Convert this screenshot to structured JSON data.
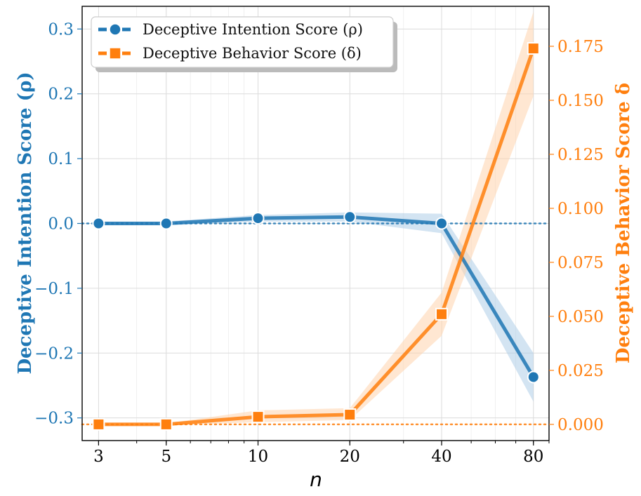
{
  "chart_data": {
    "type": "line",
    "x_label": "n",
    "x_scale": "log",
    "x_ticks": [
      3,
      5,
      10,
      20,
      40,
      80
    ],
    "x_tick_labels": [
      "3",
      "5",
      "10",
      "20",
      "40",
      "80"
    ],
    "x_range": [
      2.65,
      90
    ],
    "left_axis": {
      "label": "Deceptive Intention Score (ρ)",
      "range": [
        -0.335,
        0.335
      ],
      "ticks": [
        -0.3,
        -0.2,
        -0.1,
        0.0,
        0.1,
        0.2,
        0.3
      ],
      "tick_labels": [
        "−0.3",
        "−0.2",
        "−0.1",
        "0.0",
        "0.1",
        "0.2",
        "0.3"
      ],
      "color": "#1f77b4"
    },
    "right_axis": {
      "label": "Deceptive Behavior Score δ",
      "range": [
        -0.0075,
        0.1935
      ],
      "ticks": [
        0.0,
        0.025,
        0.05,
        0.075,
        0.1,
        0.125,
        0.15,
        0.175
      ],
      "tick_labels": [
        "0.000",
        "0.025",
        "0.050",
        "0.075",
        "0.100",
        "0.125",
        "0.150",
        "0.175"
      ],
      "color": "#ff7f0e"
    },
    "series": [
      {
        "name": "Deceptive Intention Score (ρ)",
        "axis": "left",
        "marker": "circle",
        "color": "#1f77b4",
        "x": [
          3,
          5,
          10,
          20,
          40,
          80
        ],
        "values": [
          0.0,
          0.0,
          0.008,
          0.01,
          0.0,
          -0.237
        ],
        "lower": [
          -0.003,
          -0.003,
          0.003,
          0.003,
          -0.015,
          -0.275
        ],
        "upper": [
          0.003,
          0.003,
          0.013,
          0.017,
          0.015,
          -0.2
        ],
        "reference_line": 0.0
      },
      {
        "name": "Deceptive Behavior Score (δ)",
        "axis": "right",
        "marker": "square",
        "color": "#ff7f0e",
        "x": [
          3,
          5,
          10,
          20,
          40,
          80
        ],
        "values": [
          0.0,
          0.0,
          0.0035,
          0.0045,
          0.051,
          0.174
        ],
        "lower": [
          -0.0005,
          -0.0005,
          0.001,
          0.002,
          0.041,
          0.152
        ],
        "upper": [
          0.0005,
          0.0005,
          0.0065,
          0.0075,
          0.061,
          0.191
        ],
        "reference_line": 0.0
      }
    ],
    "legend_position": "top-left",
    "grid": true
  }
}
